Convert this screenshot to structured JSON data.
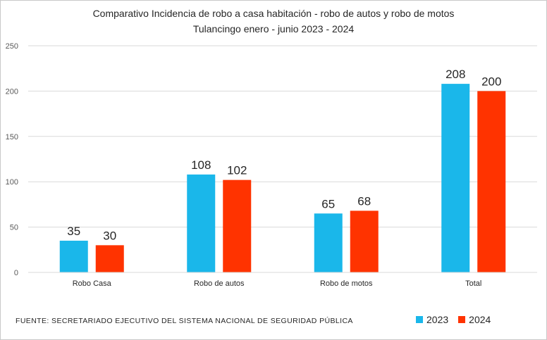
{
  "chart_data": {
    "type": "bar",
    "title": "Comparativo Incidencia de robo  a casa habitación - robo de autos y robo de motos",
    "subtitle": "Tulancingo enero - junio 2023 - 2024",
    "categories": [
      "Robo  Casa",
      "Robo de autos",
      "Robo de motos",
      "Total"
    ],
    "series": [
      {
        "name": "2023",
        "values": [
          35,
          108,
          65,
          208
        ],
        "color": "#1ab7ea"
      },
      {
        "name": "2024",
        "values": [
          30,
          102,
          68,
          200
        ],
        "color": "#ff3300"
      }
    ],
    "ylim": [
      0,
      250
    ],
    "yticks": [
      0,
      50,
      100,
      150,
      200,
      250
    ],
    "grid": true,
    "legend": "bottom-right",
    "data_labels": true
  },
  "source": "FUENTE:  SECRETARIADO  EJECUTIVO  DEL SISTEMA NACIONAL DE SEGURIDAD  PÚBLICA"
}
